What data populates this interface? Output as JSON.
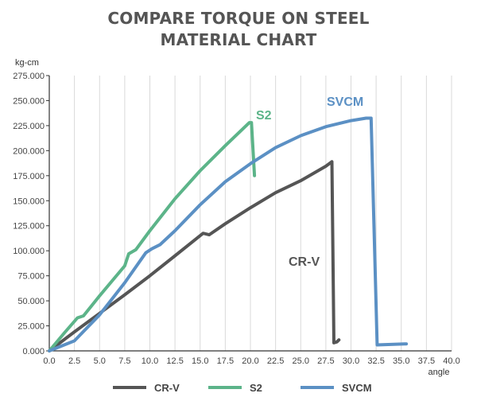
{
  "title_line1": "COMPARE TORQUE ON STEEL",
  "title_line2": "MATERIAL CHART",
  "chart_data": {
    "type": "line",
    "title": "COMPARE TORQUE ON STEEL MATERIAL CHART",
    "xlabel": "angle",
    "ylabel": "kg-cm",
    "xlim": [
      0,
      40
    ],
    "ylim": [
      0,
      275000
    ],
    "x_ticks": [
      "0.0",
      "2.5",
      "5.0",
      "7.5",
      "10.0",
      "12.5",
      "15.0",
      "17.5",
      "20.0",
      "22.5",
      "25.0",
      "27.5",
      "30.0",
      "32.5",
      "35.0",
      "37.5",
      "40.0"
    ],
    "y_ticks": [
      "0.000",
      "25.000",
      "50.000",
      "75.000",
      "100.000",
      "125.000",
      "150.000",
      "175.000",
      "200.000",
      "225.000",
      "250.000",
      "275.000"
    ],
    "grid": "vertical",
    "legend_position": "bottom",
    "series": [
      {
        "name": "CR-V",
        "color": "#555555",
        "label": "CR-V",
        "points": [
          [
            0,
            0
          ],
          [
            2.5,
            19000
          ],
          [
            5,
            37500
          ],
          [
            7.5,
            56000
          ],
          [
            10,
            75000
          ],
          [
            12.5,
            95000
          ],
          [
            15.3,
            117500
          ],
          [
            15.9,
            116000
          ],
          [
            17.5,
            127000
          ],
          [
            20,
            143000
          ],
          [
            22.5,
            158000
          ],
          [
            25,
            170000
          ],
          [
            27.5,
            184500
          ],
          [
            28.1,
            189000
          ],
          [
            28.3,
            8000
          ],
          [
            28.6,
            9000
          ],
          [
            28.8,
            11000
          ]
        ]
      },
      {
        "name": "S2",
        "color": "#5cb489",
        "label": "S2",
        "points": [
          [
            0,
            0
          ],
          [
            1.5,
            18000
          ],
          [
            2.8,
            33000
          ],
          [
            3.4,
            35000
          ],
          [
            5,
            55000
          ],
          [
            7.5,
            85000
          ],
          [
            7.9,
            97000
          ],
          [
            8.6,
            101000
          ],
          [
            10,
            120000
          ],
          [
            12.5,
            152000
          ],
          [
            15,
            180000
          ],
          [
            17.5,
            205000
          ],
          [
            19.9,
            228000
          ],
          [
            20.1,
            228000
          ],
          [
            20.4,
            175000
          ]
        ]
      },
      {
        "name": "SVCM",
        "color": "#5b90c4",
        "label": "SVCM",
        "points": [
          [
            0,
            0
          ],
          [
            2.5,
            10000
          ],
          [
            5,
            36000
          ],
          [
            7.5,
            68000
          ],
          [
            9.6,
            98000
          ],
          [
            10.2,
            102000
          ],
          [
            11,
            106000
          ],
          [
            12.5,
            120000
          ],
          [
            15,
            146000
          ],
          [
            17.5,
            169000
          ],
          [
            20,
            187000
          ],
          [
            22.5,
            203000
          ],
          [
            25,
            215000
          ],
          [
            27.5,
            224000
          ],
          [
            30,
            230000
          ],
          [
            31.5,
            232500
          ],
          [
            32,
            232500
          ],
          [
            32.6,
            6000
          ],
          [
            35.5,
            7000
          ]
        ]
      }
    ]
  }
}
